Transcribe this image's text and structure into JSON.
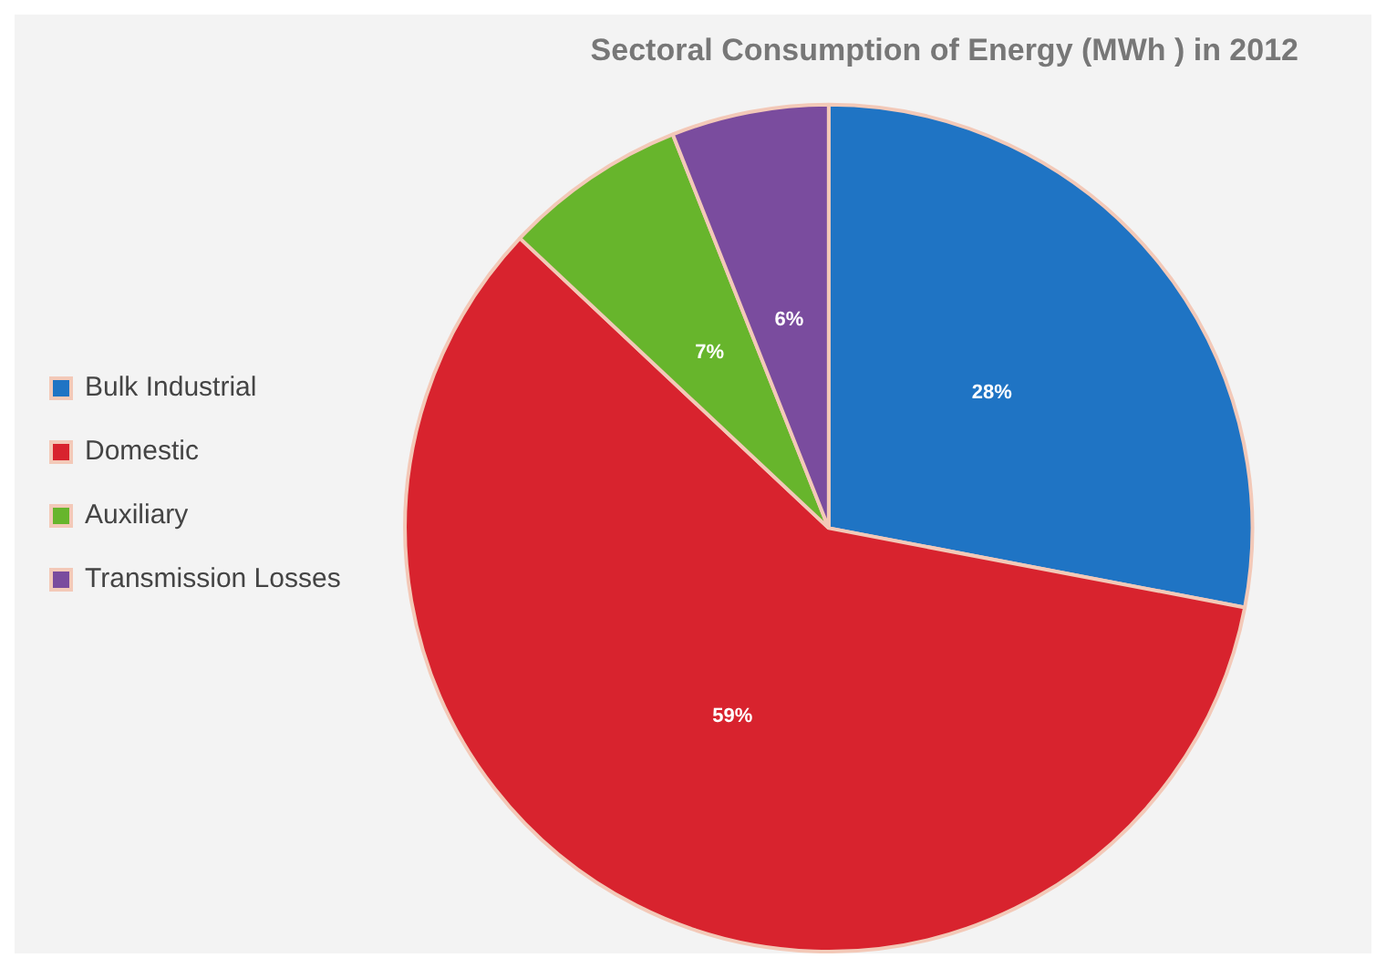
{
  "chart_data": {
    "type": "pie",
    "title": "Sectoral Consumption of Energy (MWh ) in 2012",
    "categories": [
      "Bulk Industrial",
      "Domestic",
      "Auxiliary",
      "Transmission Losses"
    ],
    "values": [
      28,
      59,
      7,
      6
    ],
    "colors": [
      "#1f74c4",
      "#d8232e",
      "#67b52c",
      "#7a4c9e"
    ],
    "value_labels": [
      "28%",
      "59%",
      "7%",
      "6%"
    ],
    "legend": "left"
  }
}
